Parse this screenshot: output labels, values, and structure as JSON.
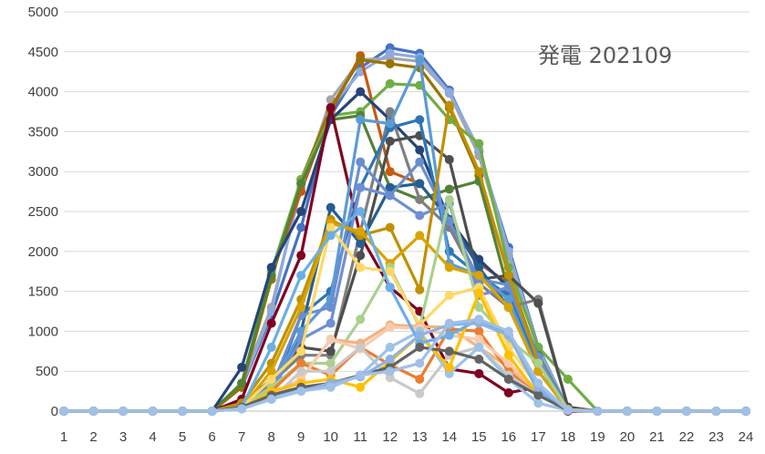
{
  "chart_data": {
    "type": "line",
    "title": "発電 202109",
    "xlabel": "",
    "ylabel": "",
    "x": [
      1,
      2,
      3,
      4,
      5,
      6,
      7,
      8,
      9,
      10,
      11,
      12,
      13,
      14,
      15,
      16,
      17,
      18,
      19,
      20,
      21,
      22,
      23,
      24
    ],
    "ylim": [
      0,
      5000
    ],
    "yticks": [
      0,
      500,
      1000,
      1500,
      2000,
      2500,
      3000,
      3500,
      4000,
      4500,
      5000
    ],
    "grid": true,
    "legend": "none",
    "series": [
      {
        "color": "#4472C4",
        "values": [
          0,
          0,
          0,
          0,
          0,
          0,
          300,
          1200,
          2300,
          3700,
          4300,
          4550,
          4480,
          4020,
          3250,
          2050,
          800,
          30,
          0,
          0,
          0,
          0,
          0,
          0
        ]
      },
      {
        "color": "#A5A5A5",
        "values": [
          0,
          0,
          0,
          0,
          0,
          0,
          350,
          1300,
          2800,
          3900,
          4400,
          4420,
          4380,
          3980,
          3200,
          1950,
          750,
          30,
          0,
          0,
          0,
          0,
          0,
          0
        ]
      },
      {
        "color": "#8FAADC",
        "values": [
          0,
          0,
          0,
          0,
          0,
          0,
          320,
          1250,
          2850,
          3800,
          4250,
          4480,
          4430,
          3990,
          3280,
          2000,
          780,
          30,
          0,
          0,
          0,
          0,
          0,
          0
        ]
      },
      {
        "color": "#C55A11",
        "values": [
          0,
          0,
          0,
          0,
          0,
          0,
          300,
          1700,
          2750,
          3750,
          4450,
          3000,
          2850,
          2400,
          1850,
          1600,
          500,
          20,
          0,
          0,
          0,
          0,
          0,
          0
        ]
      },
      {
        "color": "#997300",
        "values": [
          0,
          0,
          0,
          0,
          0,
          0,
          300,
          1650,
          2900,
          3800,
          4400,
          4350,
          4300,
          3800,
          2950,
          1700,
          650,
          20,
          0,
          0,
          0,
          0,
          0,
          0
        ]
      },
      {
        "color": "#70AD47",
        "values": [
          0,
          0,
          0,
          0,
          0,
          0,
          350,
          1750,
          2900,
          3700,
          3750,
          4100,
          4080,
          3650,
          3350,
          1800,
          800,
          400,
          0,
          0,
          0,
          0,
          0,
          0
        ]
      },
      {
        "color": "#548235",
        "values": [
          0,
          0,
          0,
          0,
          0,
          0,
          350,
          1700,
          2850,
          3650,
          3700,
          2800,
          2650,
          2780,
          2880,
          1500,
          700,
          30,
          0,
          0,
          0,
          0,
          0,
          0
        ]
      },
      {
        "color": "#264478",
        "values": [
          0,
          0,
          0,
          0,
          0,
          0,
          550,
          1800,
          2500,
          3650,
          4000,
          3650,
          3270,
          2400,
          1900,
          1550,
          600,
          30,
          0,
          0,
          0,
          0,
          0,
          0
        ]
      },
      {
        "color": "#7F0021",
        "values": [
          0,
          0,
          0,
          0,
          0,
          0,
          150,
          1100,
          1950,
          3800,
          2200,
          1550,
          1250,
          530,
          470,
          230,
          300,
          0,
          0,
          0,
          0,
          0,
          0,
          0
        ]
      },
      {
        "color": "#7F7F7F",
        "values": [
          0,
          0,
          0,
          0,
          0,
          0,
          100,
          350,
          700,
          700,
          2250,
          3750,
          2650,
          2300,
          1600,
          1300,
          1400,
          50,
          0,
          0,
          0,
          0,
          0,
          0
        ]
      },
      {
        "color": "#4E4E4E",
        "values": [
          0,
          0,
          0,
          0,
          0,
          0,
          80,
          400,
          800,
          750,
          1950,
          3380,
          3450,
          3150,
          1650,
          1700,
          1350,
          50,
          0,
          0,
          0,
          0,
          0,
          0
        ]
      },
      {
        "color": "#255E91",
        "values": [
          0,
          0,
          0,
          0,
          0,
          0,
          100,
          200,
          1000,
          2550,
          2100,
          2800,
          2850,
          2400,
          1800,
          1300,
          500,
          20,
          0,
          0,
          0,
          0,
          0,
          0
        ]
      },
      {
        "color": "#2E75B6",
        "values": [
          0,
          0,
          0,
          0,
          0,
          0,
          100,
          200,
          1200,
          1500,
          2800,
          3550,
          3650,
          2000,
          1700,
          1450,
          600,
          20,
          0,
          0,
          0,
          0,
          0,
          0
        ]
      },
      {
        "color": "#5B9BD5",
        "values": [
          0,
          0,
          0,
          0,
          0,
          0,
          100,
          300,
          1000,
          1400,
          3650,
          3600,
          4400,
          1850,
          1700,
          1400,
          500,
          20,
          0,
          0,
          0,
          0,
          0,
          0
        ]
      },
      {
        "color": "#6F8FD5",
        "values": [
          0,
          0,
          0,
          0,
          0,
          0,
          80,
          250,
          900,
          1100,
          2800,
          2700,
          2450,
          2600,
          1450,
          1550,
          650,
          20,
          0,
          0,
          0,
          0,
          0,
          0
        ]
      },
      {
        "color": "#698ED0",
        "values": [
          0,
          0,
          0,
          0,
          0,
          0,
          80,
          300,
          1200,
          1300,
          3120,
          2700,
          3120,
          2380,
          1650,
          1580,
          680,
          20,
          0,
          0,
          0,
          0,
          0,
          0
        ]
      },
      {
        "color": "#BF9000",
        "values": [
          0,
          0,
          0,
          0,
          0,
          0,
          100,
          600,
          1400,
          2400,
          2200,
          2300,
          1520,
          3830,
          3000,
          1700,
          600,
          20,
          0,
          0,
          0,
          0,
          0,
          0
        ]
      },
      {
        "color": "#D9A300",
        "values": [
          0,
          0,
          0,
          0,
          0,
          0,
          50,
          500,
          1300,
          2350,
          2250,
          1850,
          2200,
          1800,
          1700,
          1300,
          500,
          20,
          0,
          0,
          0,
          0,
          0,
          0
        ]
      },
      {
        "color": "#A9D18E",
        "values": [
          0,
          0,
          0,
          0,
          0,
          0,
          50,
          300,
          600,
          600,
          1150,
          1800,
          1050,
          2650,
          1300,
          900,
          600,
          20,
          0,
          0,
          0,
          0,
          0,
          0
        ]
      },
      {
        "color": "#FFD966",
        "values": [
          0,
          0,
          0,
          0,
          0,
          0,
          50,
          400,
          750,
          2300,
          1800,
          1750,
          1080,
          1450,
          1550,
          800,
          300,
          20,
          0,
          0,
          0,
          0,
          0,
          0
        ]
      },
      {
        "color": "#F4B183",
        "values": [
          0,
          0,
          0,
          0,
          0,
          0,
          50,
          200,
          400,
          900,
          850,
          1080,
          1060,
          1050,
          800,
          550,
          250,
          20,
          0,
          0,
          0,
          0,
          0,
          0
        ]
      },
      {
        "color": "#ED7D31",
        "values": [
          0,
          0,
          0,
          0,
          0,
          0,
          30,
          250,
          600,
          450,
          800,
          580,
          400,
          1030,
          1000,
          500,
          200,
          10,
          0,
          0,
          0,
          0,
          0,
          0
        ]
      },
      {
        "color": "#F8CBAD",
        "values": [
          0,
          0,
          0,
          0,
          0,
          0,
          30,
          150,
          400,
          900,
          780,
          1050,
          1040,
          950,
          900,
          600,
          250,
          10,
          0,
          0,
          0,
          0,
          0,
          0
        ]
      },
      {
        "color": "#C9C9C9",
        "values": [
          0,
          0,
          0,
          0,
          0,
          0,
          30,
          150,
          500,
          500,
          800,
          420,
          220,
          700,
          800,
          450,
          200,
          10,
          0,
          0,
          0,
          0,
          0,
          0
        ]
      },
      {
        "color": "#9DC3E6",
        "values": [
          0,
          0,
          0,
          0,
          0,
          0,
          30,
          150,
          300,
          300,
          450,
          800,
          1000,
          470,
          800,
          400,
          100,
          10,
          0,
          0,
          0,
          0,
          0,
          0
        ]
      },
      {
        "color": "#FFC000",
        "values": [
          0,
          0,
          0,
          0,
          0,
          0,
          30,
          250,
          350,
          400,
          300,
          620,
          950,
          550,
          1480,
          700,
          200,
          10,
          0,
          0,
          0,
          0,
          0,
          0
        ]
      },
      {
        "color": "#6AAFE6",
        "values": [
          0,
          0,
          0,
          0,
          0,
          0,
          50,
          800,
          1700,
          2200,
          2500,
          1550,
          850,
          950,
          1150,
          950,
          250,
          10,
          0,
          0,
          0,
          0,
          0,
          0
        ]
      },
      {
        "color": "#636363",
        "values": [
          0,
          0,
          0,
          0,
          0,
          0,
          50,
          200,
          300,
          350,
          450,
          550,
          800,
          750,
          650,
          400,
          200,
          10,
          0,
          0,
          0,
          0,
          0,
          0
        ]
      },
      {
        "color": "#8DB3E2",
        "values": [
          0,
          0,
          0,
          0,
          0,
          0,
          30,
          150,
          250,
          350,
          430,
          650,
          950,
          1080,
          1100,
          950,
          300,
          10,
          0,
          0,
          0,
          0,
          0,
          0
        ]
      },
      {
        "color": "#A0C0E8",
        "values": [
          0,
          0,
          0,
          0,
          0,
          0,
          30,
          150,
          250,
          300,
          450,
          500,
          600,
          1100,
          1150,
          1000,
          350,
          10,
          0,
          0,
          0,
          0,
          0,
          0
        ]
      }
    ]
  }
}
